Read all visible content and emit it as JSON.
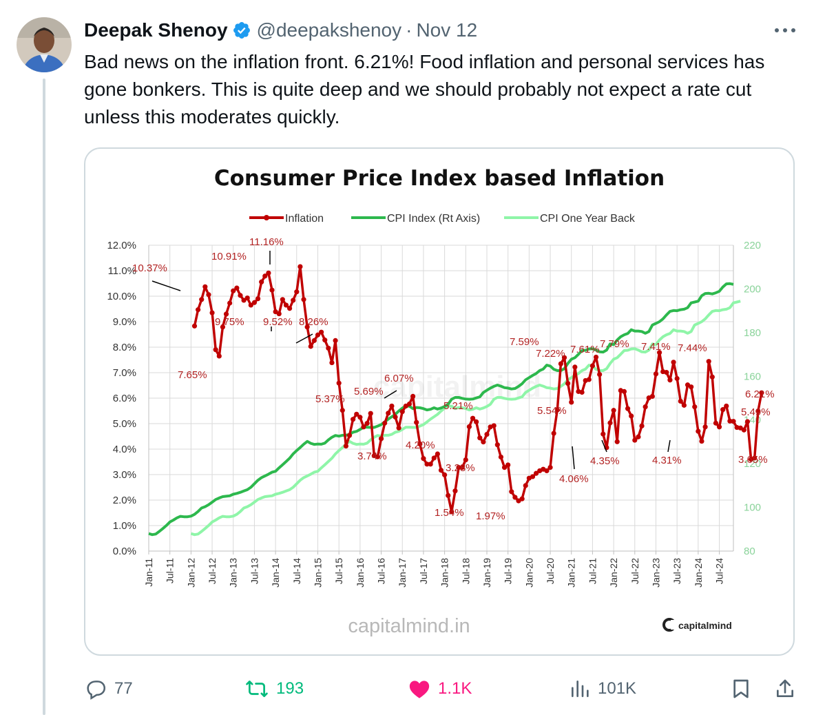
{
  "tweet": {
    "author_name": "Deepak Shenoy",
    "handle": "@deepakshenoy",
    "separator": "·",
    "date": "Nov 12",
    "text": "Bad news on the inflation front. 6.21%! Food inflation and personal services has gone bonkers. This is quite deep and we should probably not expect a rate cut unless this moderates quickly."
  },
  "actions": {
    "replies": "77",
    "reposts": "193",
    "likes": "1.1K",
    "views": "101K"
  },
  "icons": {
    "verified": "verified-badge-icon",
    "more": "more-options-icon",
    "reply": "reply-icon",
    "repost": "repost-icon",
    "like": "heart-icon",
    "views": "views-icon",
    "bookmark": "bookmark-icon",
    "share": "share-icon"
  },
  "colors": {
    "accent_blue": "#1d9bf0",
    "repost_green": "#00ba7c",
    "like_pink": "#f91880",
    "inflation_line": "#c00000",
    "cpi_index_line": "#2db84d",
    "cpi_one_year_back_line": "#8ff5a8"
  },
  "chart_data": {
    "type": "line",
    "title": "Consumer Price Index based Inflation",
    "legend": [
      "Inflation",
      "CPI Index (Rt Axis)",
      "CPI One Year Back"
    ],
    "legend_position": "top",
    "grid": true,
    "x_tick_labels": [
      "Jan-11",
      "Jul-11",
      "Jan-12",
      "Jul-12",
      "Jan-13",
      "Jul-13",
      "Jan-14",
      "Jul-14",
      "Jan-15",
      "Jul-15",
      "Jan-16",
      "Jul-16",
      "Jan-17",
      "Jul-17",
      "Jan-18",
      "Jul-18",
      "Jan-19",
      "Jul-19",
      "Jan-20",
      "Jul-20",
      "Jan-21",
      "Jul-21",
      "Jan-22",
      "Jul-22",
      "Jan-23",
      "Jul-23",
      "Jan-24",
      "Jul-24"
    ],
    "y_left_ticks": [
      "0.0%",
      "1.0%",
      "2.0%",
      "3.0%",
      "4.0%",
      "5.0%",
      "6.0%",
      "7.0%",
      "8.0%",
      "9.0%",
      "10.0%",
      "11.0%",
      "12.0%"
    ],
    "y_left_range": [
      0,
      12
    ],
    "y_right_ticks": [
      "80",
      "100",
      "120",
      "140",
      "160",
      "180",
      "200",
      "220"
    ],
    "y_right_range": [
      80,
      220
    ],
    "series": [
      {
        "name": "Inflation",
        "start": "2011-01",
        "values": [
          null,
          null,
          null,
          null,
          null,
          null,
          null,
          null,
          null,
          null,
          null,
          null,
          null,
          8.83,
          9.47,
          9.87,
          10.37,
          10.06,
          9.35,
          7.9,
          7.65,
          8.79,
          9.3,
          9.73,
          10.21,
          10.32,
          10.03,
          9.84,
          9.93,
          9.65,
          9.75,
          9.9,
          10.56,
          10.79,
          10.91,
          10.24,
          9.39,
          9.31,
          9.87,
          9.65,
          9.52,
          9.84,
          10.17,
          11.16,
          9.87,
          8.79,
          8.03,
          8.26,
          8.48,
          8.59,
          8.28,
          7.96,
          7.39,
          8.26,
          6.59,
          5.52,
          4.12,
          4.54,
          5.17,
          5.37,
          5.25,
          4.87,
          5.01,
          5.4,
          3.74,
          3.7,
          4.41,
          5.02,
          5.41,
          5.69,
          5.26,
          4.83,
          5.47,
          5.69,
          5.77,
          6.07,
          5.05,
          4.2,
          3.63,
          3.41,
          3.41,
          3.65,
          3.81,
          3.17,
          2.99,
          2.18,
          1.54,
          2.36,
          3.28,
          3.28,
          3.58,
          4.88,
          5.21,
          5.07,
          4.44,
          4.28,
          4.58,
          4.87,
          4.92,
          4.17,
          3.69,
          3.28,
          3.38,
          2.33,
          2.11,
          1.97,
          2.05,
          2.57,
          2.86,
          2.92,
          3.05,
          3.15,
          3.21,
          3.15,
          3.28,
          4.62,
          5.54,
          7.35,
          7.59,
          6.58,
          5.84,
          7.22,
          6.26,
          6.23,
          6.69,
          6.73,
          7.27,
          7.61,
          6.93,
          4.59,
          4.06,
          5.03,
          5.52,
          4.29,
          6.3,
          6.26,
          5.59,
          5.3,
          4.35,
          4.48,
          4.91,
          5.66,
          6.01,
          6.07,
          6.95,
          7.79,
          7.04,
          7.01,
          6.71,
          7.41,
          6.77,
          5.88,
          5.72,
          6.52,
          6.44,
          5.66,
          4.7,
          4.31,
          4.87,
          7.44,
          6.83,
          5.02,
          4.87,
          5.55,
          5.69,
          5.1,
          5.09,
          4.85,
          4.83,
          4.75,
          5.08,
          3.6,
          3.65,
          5.49,
          6.21
        ]
      },
      {
        "name": "CPI Index (Rt Axis)",
        "start": "2011-01",
        "values": [
          88,
          87.5,
          87.8,
          89.0,
          90.3,
          91.7,
          93.3,
          94.2,
          95.2,
          95.9,
          95.7,
          95.7,
          96.0,
          96.8,
          98.1,
          99.7,
          100.3,
          101.2,
          102.4,
          103.6,
          104.3,
          104.9,
          105.1,
          105.3,
          106.0,
          106.4,
          106.9,
          107.5,
          108.1,
          109.2,
          110.8,
          112.4,
          113.6,
          114.4,
          115.2,
          116.1,
          116.5,
          118.1,
          119.5,
          121.0,
          122.5,
          124.5,
          126.0,
          127.4,
          128.9,
          130.2,
          129.3,
          128.8,
          129.0,
          128.9,
          129.4,
          130.9,
          132.1,
          132.9,
          132.6,
          133.0,
          133.0,
          133.4,
          134.4,
          134.8,
          135.7,
          136.7,
          136.7,
          136.6,
          136.6,
          137.2,
          137.9,
          139.1,
          140.4,
          141.5,
          142.6,
          144.1,
          145.4,
          146.4,
          146.3,
          145.2,
          145.7,
          145.6,
          145.2,
          144.6,
          144.9,
          145.6,
          145.0,
          145.5,
          146.2,
          147.2,
          149.5,
          150.3,
          150.3,
          149.9,
          149.6,
          149.5,
          149.6,
          150.1,
          150.6,
          152.6,
          153.6,
          154.6,
          155.4,
          156.0,
          155.5,
          154.8,
          154.6,
          154.2,
          154.4,
          155.4,
          156.6,
          158.4,
          159.4,
          160.4,
          161.3,
          162.6,
          163.3,
          165.1,
          164.7,
          163.2,
          162.6,
          162.6,
          163.5,
          165.9,
          167.8,
          168.5,
          170.1,
          171.8,
          171.9,
          172.5,
          172.6,
          172.0,
          171.2,
          171.1,
          172.0,
          174.8,
          174.5,
          176.6,
          178.1,
          179.0,
          179.6,
          181.3,
          180.7,
          180.7,
          180.5,
          179.7,
          180.5,
          183.5,
          184.2,
          185.0,
          186.3,
          188.1,
          189.7,
          190.1,
          190.0,
          190.5,
          190.7,
          191.4,
          193.6,
          194.0,
          194.4,
          196.9,
          197.9,
          198.0,
          197.7,
          198.2,
          198.9,
          200.9,
          202.3,
          202.4,
          202.1
        ]
      },
      {
        "name": "CPI One Year Back",
        "start": "2012-01",
        "values": [
          88,
          87.5,
          87.8,
          89.0,
          90.3,
          91.7,
          93.3,
          94.2,
          95.2,
          95.9,
          95.7,
          95.7,
          96.0,
          96.8,
          98.1,
          99.7,
          100.3,
          101.2,
          102.4,
          103.6,
          104.3,
          104.9,
          105.1,
          105.3,
          106.0,
          106.4,
          106.9,
          107.5,
          108.1,
          109.2,
          110.8,
          112.4,
          113.6,
          114.4,
          115.2,
          116.1,
          116.5,
          118.1,
          119.5,
          121.0,
          122.5,
          124.5,
          126.0,
          127.4,
          128.9,
          130.2,
          129.3,
          128.8,
          129.0,
          128.9,
          129.4,
          130.9,
          132.1,
          132.9,
          132.6,
          133.0,
          133.0,
          133.4,
          134.4,
          134.8,
          135.7,
          136.7,
          136.7,
          136.6,
          136.6,
          137.2,
          137.9,
          139.1,
          140.4,
          141.5,
          142.6,
          144.1,
          145.4,
          146.4,
          146.3,
          145.2,
          145.7,
          145.6,
          145.2,
          144.6,
          144.9,
          145.6,
          145.0,
          145.5,
          146.2,
          147.2,
          149.5,
          150.3,
          150.3,
          149.9,
          149.6,
          149.5,
          149.6,
          150.1,
          150.6,
          152.6,
          153.6,
          154.6,
          155.4,
          156.0,
          155.5,
          154.8,
          154.6,
          154.2,
          154.4,
          155.4,
          156.6,
          158.4,
          159.4,
          160.4,
          161.3,
          162.6,
          163.3,
          165.1,
          164.7,
          163.2,
          162.6,
          162.6,
          163.5,
          165.9,
          167.8,
          168.5,
          170.1,
          171.8,
          171.9,
          172.5,
          172.6,
          172.0,
          171.2,
          171.1,
          172.0,
          174.8,
          174.5,
          176.6,
          178.1,
          179.0,
          179.6,
          181.3,
          180.7,
          180.7,
          180.5,
          179.7,
          180.5,
          183.5,
          184.2,
          185.0,
          186.3,
          188.1,
          189.7,
          190.1,
          190.0,
          190.5,
          190.7,
          191.4,
          193.6,
          194.0,
          194.4
        ]
      }
    ],
    "annotations": [
      {
        "text": "10.37%",
        "x": "2011-05",
        "y": 10.37
      },
      {
        "text": "10.91%",
        "x": "2013-02",
        "y": 10.91
      },
      {
        "text": "11.16%",
        "x": "2013-11",
        "y": 11.16
      },
      {
        "text": "7.65%",
        "x": "2011-09",
        "y": 7.65
      },
      {
        "text": "9.75%",
        "x": "2012-07",
        "y": 9.75
      },
      {
        "text": "9.52%",
        "x": "2013-05",
        "y": 9.52
      },
      {
        "text": "8.26%",
        "x": "2014-07",
        "y": 8.26
      },
      {
        "text": "5.37%",
        "x": "2015-06",
        "y": 5.37
      },
      {
        "text": "5.69%",
        "x": "2016-06",
        "y": 5.69
      },
      {
        "text": "6.07%",
        "x": "2016-07",
        "y": 6.07
      },
      {
        "text": "3.74%",
        "x": "2015-08",
        "y": 3.74
      },
      {
        "text": "4.20%",
        "x": "2016-09",
        "y": 4.2
      },
      {
        "text": "5.21%",
        "x": "2018-01",
        "y": 5.21
      },
      {
        "text": "3.28%",
        "x": "2017-09",
        "y": 3.28
      },
      {
        "text": "1.54%",
        "x": "2017-06",
        "y": 1.54
      },
      {
        "text": "1.97%",
        "x": "2019-01",
        "y": 1.97
      },
      {
        "text": "7.59%",
        "x": "2019-12",
        "y": 7.59
      },
      {
        "text": "7.22%",
        "x": "2020-03",
        "y": 7.22
      },
      {
        "text": "7.61%",
        "x": "2020-10",
        "y": 7.61
      },
      {
        "text": "5.54%",
        "x": "2019-11",
        "y": 5.54
      },
      {
        "text": "4.06%",
        "x": "2021-01",
        "y": 4.06
      },
      {
        "text": "7.79%",
        "x": "2022-04",
        "y": 7.79
      },
      {
        "text": "4.35%",
        "x": "2021-08",
        "y": 4.35
      },
      {
        "text": "7.41%",
        "x": "2022-09",
        "y": 7.41
      },
      {
        "text": "7.44%",
        "x": "2023-07",
        "y": 7.44
      },
      {
        "text": "4.31%",
        "x": "2023-05",
        "y": 4.31
      },
      {
        "text": "6.21%",
        "x": "2024-10",
        "y": 6.21
      },
      {
        "text": "5.49%",
        "x": "2024-09",
        "y": 5.49
      },
      {
        "text": "3.65%",
        "x": "2024-08",
        "y": 3.65
      }
    ],
    "watermarks": [
      "capitalmind",
      "capitalmind.in"
    ]
  }
}
